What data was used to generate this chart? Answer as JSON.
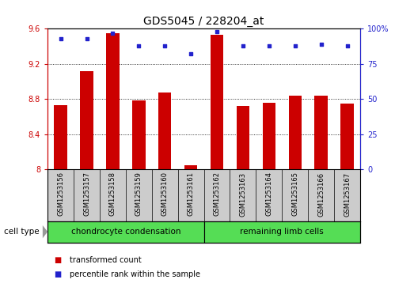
{
  "title": "GDS5045 / 228204_at",
  "samples": [
    "GSM1253156",
    "GSM1253157",
    "GSM1253158",
    "GSM1253159",
    "GSM1253160",
    "GSM1253161",
    "GSM1253162",
    "GSM1253163",
    "GSM1253164",
    "GSM1253165",
    "GSM1253166",
    "GSM1253167"
  ],
  "transformed_count": [
    8.73,
    9.12,
    9.55,
    8.78,
    8.87,
    8.05,
    9.53,
    8.72,
    8.76,
    8.84,
    8.84,
    8.75
  ],
  "percentile_rank": [
    93,
    93,
    97,
    88,
    88,
    82,
    98,
    88,
    88,
    88,
    89,
    88
  ],
  "ylim_left": [
    8.0,
    9.6
  ],
  "ylim_right": [
    0,
    100
  ],
  "yticks_left": [
    8.0,
    8.4,
    8.8,
    9.2,
    9.6
  ],
  "yticks_right": [
    0,
    25,
    50,
    75,
    100
  ],
  "ytick_labels_left": [
    "8",
    "8.4",
    "8.8",
    "9.2",
    "9.6"
  ],
  "ytick_labels_right": [
    "0",
    "25",
    "50",
    "75",
    "100%"
  ],
  "bar_color": "#cc0000",
  "dot_color": "#2222cc",
  "bar_width": 0.5,
  "groups": [
    {
      "label": "chondrocyte condensation",
      "start": 0,
      "end": 6
    },
    {
      "label": "remaining limb cells",
      "start": 6,
      "end": 12
    }
  ],
  "group_color": "#55dd55",
  "cell_type_label": "cell type",
  "legend_items": [
    {
      "label": "transformed count",
      "color": "#cc0000"
    },
    {
      "label": "percentile rank within the sample",
      "color": "#2222cc"
    }
  ],
  "xtick_bg": "#cccccc",
  "plot_bg": "white",
  "title_fontsize": 10,
  "tick_fontsize": 7,
  "sample_fontsize": 6,
  "legend_fontsize": 7,
  "ctype_fontsize": 7.5
}
